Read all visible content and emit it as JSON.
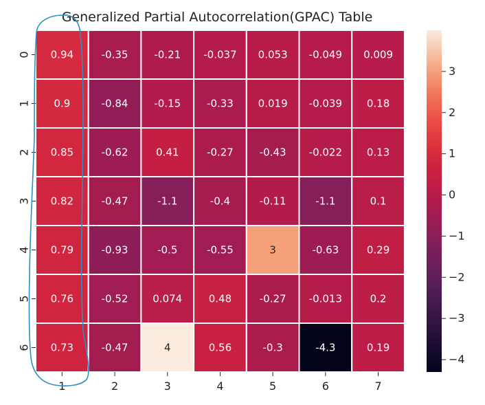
{
  "chart_data": {
    "type": "heatmap",
    "title": "Generalized Partial Autocorrelation(GPAC) Table",
    "x_tick_labels": [
      "1",
      "2",
      "3",
      "4",
      "5",
      "6",
      "7"
    ],
    "y_tick_labels": [
      "0",
      "1",
      "2",
      "3",
      "4",
      "5",
      "6"
    ],
    "values": [
      [
        0.94,
        -0.35,
        -0.21,
        -0.037,
        0.053,
        -0.049,
        0.009
      ],
      [
        0.9,
        -0.84,
        -0.15,
        -0.33,
        0.019,
        -0.039,
        0.18
      ],
      [
        0.85,
        -0.62,
        0.41,
        -0.27,
        -0.43,
        -0.022,
        0.13
      ],
      [
        0.82,
        -0.47,
        -1.1,
        -0.4,
        -0.11,
        -1.1,
        0.1
      ],
      [
        0.79,
        -0.93,
        -0.5,
        -0.55,
        3,
        -0.63,
        0.29
      ],
      [
        0.76,
        -0.52,
        0.074,
        0.48,
        -0.27,
        -0.013,
        0.2
      ],
      [
        0.73,
        -0.47,
        4,
        0.56,
        -0.3,
        -4.3,
        0.19
      ]
    ],
    "annotations": [
      [
        "0.94",
        "-0.35",
        "-0.21",
        "-0.037",
        "0.053",
        "-0.049",
        "0.009"
      ],
      [
        "0.9",
        "-0.84",
        "-0.15",
        "-0.33",
        "0.019",
        "-0.039",
        "0.18"
      ],
      [
        "0.85",
        "-0.62",
        "0.41",
        "-0.27",
        "-0.43",
        "-0.022",
        "0.13"
      ],
      [
        "0.82",
        "-0.47",
        "-1.1",
        "-0.4",
        "-0.11",
        "-1.1",
        "0.1"
      ],
      [
        "0.79",
        "-0.93",
        "-0.5",
        "-0.55",
        "3",
        "-0.63",
        "0.29"
      ],
      [
        "0.76",
        "-0.52",
        "0.074",
        "0.48",
        "-0.27",
        "-0.013",
        "0.2"
      ],
      [
        "0.73",
        "-0.47",
        "4",
        "0.56",
        "-0.3",
        "-4.3",
        "0.19"
      ]
    ],
    "colorbar": {
      "vmin": -4.3,
      "vmax": 4,
      "ticks": [
        -4,
        -3,
        -2,
        -1,
        0,
        1,
        2,
        3
      ],
      "tick_labels": [
        "−4",
        "−3",
        "−2",
        "−1",
        "0",
        "1",
        "2",
        "3"
      ]
    },
    "colormap": "rocket",
    "hand_drawn_annotation": {
      "color": "#2a8fbf",
      "description_target": "column 1"
    }
  }
}
